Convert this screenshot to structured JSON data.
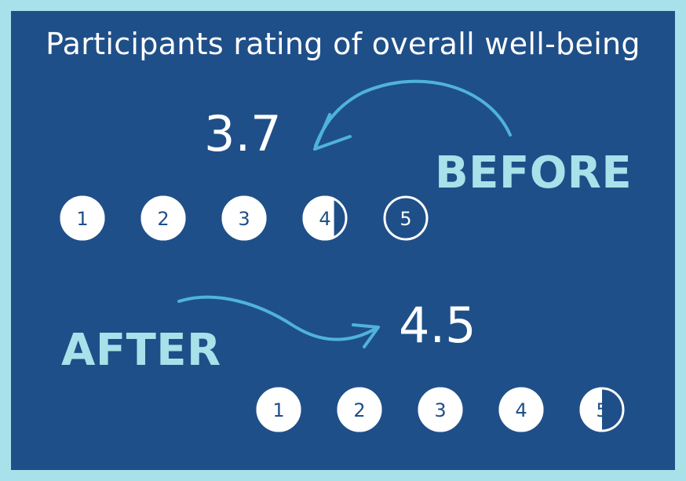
{
  "chart_data": {
    "type": "rating",
    "title": "Participants rating of overall well-being",
    "scale": [
      1,
      2,
      3,
      4,
      5
    ],
    "series": [
      {
        "name": "BEFORE",
        "value": 3.7,
        "value_label": "3.7"
      },
      {
        "name": "AFTER",
        "value": 4.5,
        "value_label": "4.5"
      }
    ]
  },
  "colors": {
    "outer_border": "#a9e1ea",
    "panel": "#1f4f88",
    "circle_fill": "#ffffff",
    "circle_number": "#1f4f88",
    "accent_label": "#a9e1ea",
    "arrow": "#4fb3dc"
  }
}
